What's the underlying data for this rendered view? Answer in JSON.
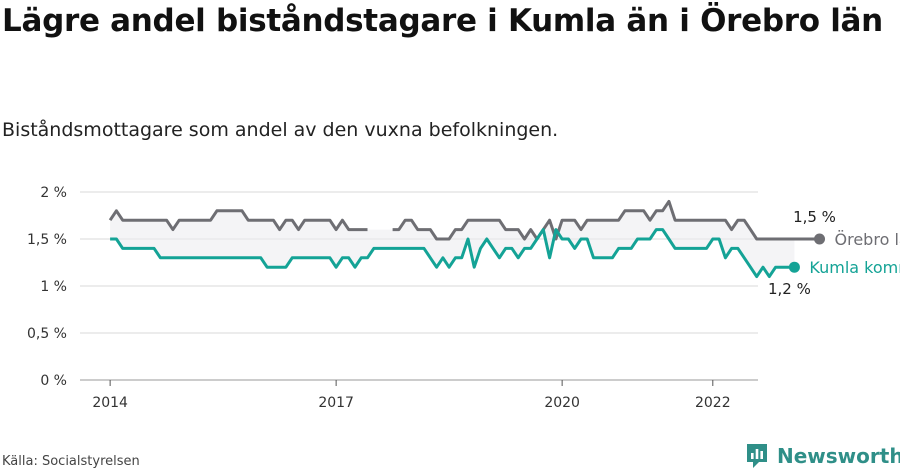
{
  "header": {
    "title": "Lägre andel biståndstagare i Kumla än i Örebro län",
    "subtitle": "Biståndsmottagare som andel av den vuxna befolkningen."
  },
  "footer": {
    "source": "Källa: Socialstyrelsen",
    "brand": "Newsworthy"
  },
  "colors": {
    "orebro": "#6e6e73",
    "kumla": "#14a396",
    "band": "#ececf0",
    "grid": "#d9d9d9",
    "brand": "#2f8f88"
  },
  "icons": {
    "logo": "newsworthy-logo-icon"
  },
  "chart_data": {
    "type": "line",
    "title": "Lägre andel biståndstagare i Kumla än i Örebro län",
    "subtitle": "Biståndsmottagare som andel av den vuxna befolkningen.",
    "x_unit": "month (decimal year)",
    "y_unit": "%",
    "xlim": [
      2013.6,
      2022.6
    ],
    "ylim": [
      0,
      2
    ],
    "yticks": [
      {
        "value": 0,
        "label": "0 %"
      },
      {
        "value": 0.5,
        "label": "0,5 %"
      },
      {
        "value": 1,
        "label": "1 %"
      },
      {
        "value": 1.5,
        "label": "1,5 %"
      },
      {
        "value": 2,
        "label": "2 %"
      }
    ],
    "xticks": [
      {
        "value": 2014,
        "label": "2014"
      },
      {
        "value": 2017,
        "label": "2017"
      },
      {
        "value": 2020,
        "label": "2020"
      },
      {
        "value": 2022,
        "label": "2022"
      }
    ],
    "grid": true,
    "series": [
      {
        "name": "Örebro län",
        "end_label": "1,5 %",
        "x_start": 2014.0,
        "x_step": 0.0833333,
        "values": [
          1.7,
          1.8,
          1.7,
          1.7,
          1.7,
          1.7,
          1.7,
          1.7,
          1.7,
          1.7,
          1.6,
          1.7,
          1.7,
          1.7,
          1.7,
          1.7,
          1.7,
          1.8,
          1.8,
          1.8,
          1.8,
          1.8,
          1.7,
          1.7,
          1.7,
          1.7,
          1.7,
          1.6,
          1.7,
          1.7,
          1.6,
          1.7,
          1.7,
          1.7,
          1.7,
          1.7,
          1.6,
          1.7,
          1.6,
          1.6,
          1.6,
          1.6,
          null,
          1.6,
          null,
          1.6,
          1.6,
          1.7,
          1.7,
          1.6,
          1.6,
          1.6,
          1.5,
          1.5,
          1.5,
          1.6,
          1.6,
          1.7,
          1.7,
          1.7,
          1.7,
          1.7,
          1.7,
          1.6,
          1.6,
          1.6,
          1.5,
          1.6,
          1.5,
          1.6,
          1.7,
          1.5,
          1.7,
          1.7,
          1.7,
          1.6,
          1.7,
          1.7,
          1.7,
          1.7,
          1.7,
          1.7,
          1.8,
          1.8,
          1.8,
          1.8,
          1.7,
          1.8,
          1.8,
          1.9,
          1.7,
          1.7,
          1.7,
          1.7,
          1.7,
          1.7,
          1.7,
          1.7,
          1.7,
          1.6,
          1.7,
          1.7,
          1.6,
          1.5,
          1.5,
          1.5,
          1.5,
          1.5,
          1.5,
          1.5,
          1.5,
          1.5,
          1.5,
          1.5
        ]
      },
      {
        "name": "Kumla kommun",
        "end_label": "1,2 %",
        "x_start": 2014.0,
        "x_step": 0.0833333,
        "values": [
          1.5,
          1.5,
          1.4,
          1.4,
          1.4,
          1.4,
          1.4,
          1.4,
          1.3,
          1.3,
          1.3,
          1.3,
          1.3,
          1.3,
          1.3,
          1.3,
          1.3,
          1.3,
          1.3,
          1.3,
          1.3,
          1.3,
          1.3,
          1.3,
          1.3,
          1.2,
          1.2,
          1.2,
          1.2,
          1.3,
          1.3,
          1.3,
          1.3,
          1.3,
          1.3,
          1.3,
          1.2,
          1.3,
          1.3,
          1.2,
          1.3,
          1.3,
          1.4,
          1.4,
          1.4,
          1.4,
          1.4,
          1.4,
          1.4,
          1.4,
          1.4,
          1.3,
          1.2,
          1.3,
          1.2,
          1.3,
          1.3,
          1.5,
          1.2,
          1.4,
          1.5,
          1.4,
          1.3,
          1.4,
          1.4,
          1.3,
          1.4,
          1.4,
          1.5,
          1.6,
          1.3,
          1.6,
          1.5,
          1.5,
          1.4,
          1.5,
          1.5,
          1.3,
          1.3,
          1.3,
          1.3,
          1.4,
          1.4,
          1.4,
          1.5,
          1.5,
          1.5,
          1.6,
          1.6,
          1.5,
          1.4,
          1.4,
          1.4,
          1.4,
          1.4,
          1.4,
          1.5,
          1.5,
          1.3,
          1.4,
          1.4,
          1.3,
          1.2,
          1.1,
          1.2,
          1.1,
          1.2,
          1.2,
          1.2,
          1.2
        ]
      }
    ]
  }
}
